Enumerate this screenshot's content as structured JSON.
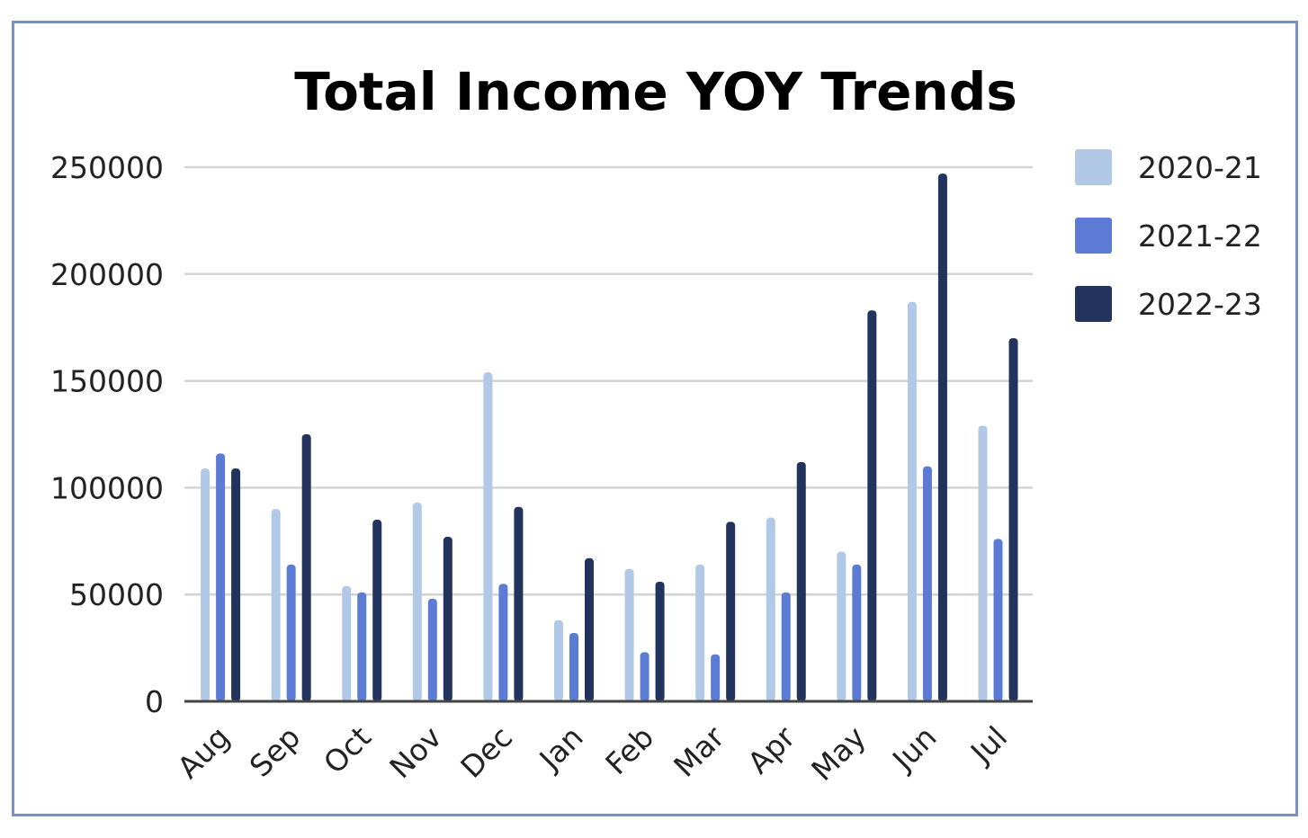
{
  "chart_data": {
    "type": "bar",
    "title": "Total Income YOY Trends",
    "xlabel": "",
    "ylabel": "",
    "ylim": [
      0,
      250000
    ],
    "yticks": [
      0,
      50000,
      100000,
      150000,
      200000,
      250000
    ],
    "grid": true,
    "legend_position": "right",
    "categories": [
      "Aug",
      "Sep",
      "Oct",
      "Nov",
      "Dec",
      "Jan",
      "Feb",
      "Mar",
      "Apr",
      "May",
      "Jun",
      "Jul"
    ],
    "series": [
      {
        "name": "2020-21",
        "color": "#b1c8e7",
        "values": [
          109000,
          90000,
          54000,
          93000,
          154000,
          38000,
          62000,
          64000,
          86000,
          70000,
          187000,
          129000
        ]
      },
      {
        "name": "2021-22",
        "color": "#5b7bd5",
        "values": [
          116000,
          64000,
          51000,
          48000,
          55000,
          32000,
          23000,
          22000,
          51000,
          64000,
          110000,
          76000
        ]
      },
      {
        "name": "2022-23",
        "color": "#22345e",
        "values": [
          109000,
          125000,
          85000,
          77000,
          91000,
          67000,
          56000,
          84000,
          112000,
          183000,
          247000,
          170000
        ]
      }
    ]
  }
}
